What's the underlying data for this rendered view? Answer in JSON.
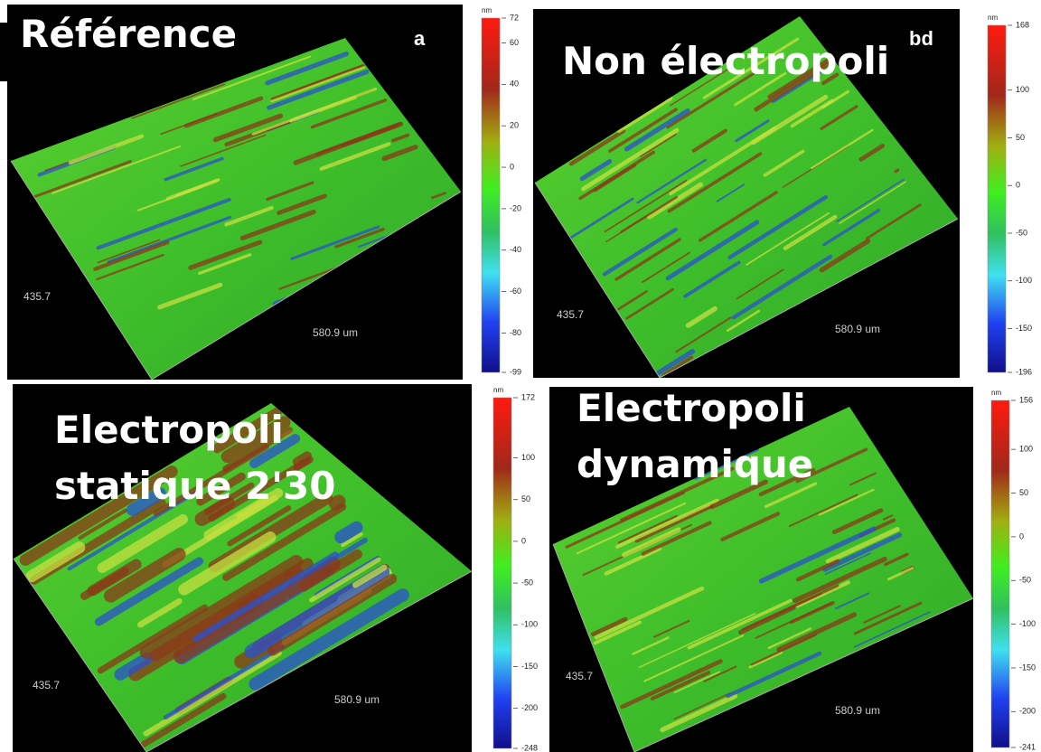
{
  "panels": [
    {
      "title_lines": [
        "Référence"
      ],
      "letter": "a",
      "colorbar": {
        "unit": "nm",
        "ticks": [
          72,
          60,
          40,
          20,
          0,
          -20,
          -40,
          -60,
          -80,
          -99
        ]
      },
      "axis_labels": [
        "435.7",
        "580.9 um"
      ]
    },
    {
      "title_lines": [
        "Non électropoli"
      ],
      "letter": "bd",
      "colorbar": {
        "unit": "nm",
        "ticks": [
          168,
          100,
          50,
          0,
          -50,
          -100,
          -150,
          -196
        ]
      },
      "axis_labels": [
        "435.7",
        "580.9 um"
      ]
    },
    {
      "title_lines": [
        "Electropoli",
        "statique 2'30"
      ],
      "letter": null,
      "colorbar": {
        "unit": "nm",
        "ticks": [
          172,
          100,
          50,
          0,
          -50,
          -100,
          -150,
          -200,
          -248
        ]
      },
      "axis_labels": [
        "435.7",
        "580.9 um"
      ]
    },
    {
      "title_lines": [
        "Electropoli",
        "dynamique"
      ],
      "letter": null,
      "colorbar": {
        "unit": "nm",
        "ticks": [
          156,
          100,
          50,
          0,
          -50,
          -100,
          -150,
          -200,
          -241
        ]
      },
      "axis_labels": [
        "435.7",
        "580.9 um"
      ]
    }
  ]
}
